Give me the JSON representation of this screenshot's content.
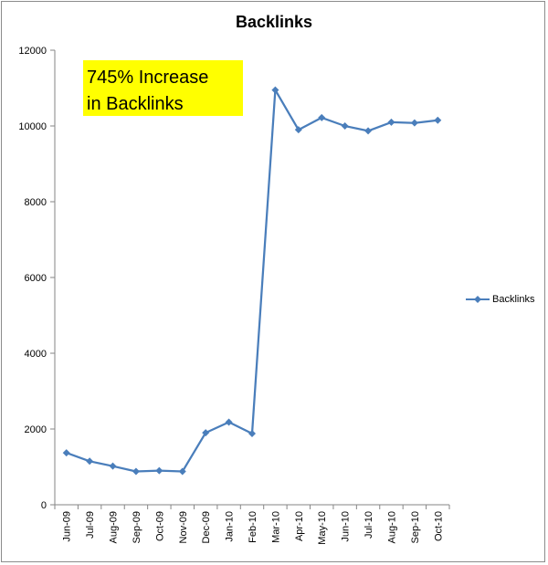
{
  "chart_data": {
    "type": "line",
    "title": "Backlinks",
    "xlabel": "",
    "ylabel": "",
    "ylim": [
      0,
      12000
    ],
    "yticks": [
      0,
      2000,
      4000,
      6000,
      8000,
      10000,
      12000
    ],
    "grid": false,
    "legend_position": "right",
    "categories": [
      "Jun-09",
      "Jul-09",
      "Aug-09",
      "Sep-09",
      "Oct-09",
      "Nov-09",
      "Dec-09",
      "Jan-10",
      "Feb-10",
      "Mar-10",
      "Apr-10",
      "May-10",
      "Jun-10",
      "Jul-10",
      "Aug-10",
      "Sep-10",
      "Oct-10"
    ],
    "series": [
      {
        "name": "Backlinks",
        "color": "#4a7ebb",
        "values": [
          1370,
          1150,
          1020,
          880,
          900,
          880,
          1900,
          2180,
          1880,
          10950,
          9900,
          10220,
          10000,
          9870,
          10100,
          10080,
          10150
        ]
      }
    ],
    "annotation": {
      "line1": "745% Increase",
      "line2": "in Backlinks",
      "background": "#ffff00"
    }
  }
}
